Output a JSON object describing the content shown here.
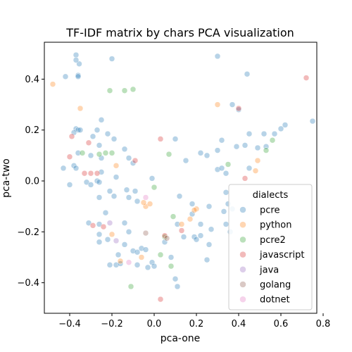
{
  "chart_data": {
    "type": "scatter",
    "title": "TF-IDF matrix by chars PCA visualization",
    "xlabel": "pca-one",
    "ylabel": "pca-two",
    "xlim": [
      -0.52,
      0.77
    ],
    "ylim": [
      -0.52,
      0.545
    ],
    "xticks": [
      -0.4,
      -0.2,
      0.0,
      0.2,
      0.4,
      0.6,
      0.8
    ],
    "xtick_labels": [
      "−0.4",
      "−0.2",
      "0.0",
      "0.2",
      "0.4",
      "0.6",
      "0.8"
    ],
    "yticks": [
      -0.4,
      -0.2,
      0.0,
      0.2,
      0.4
    ],
    "ytick_labels": [
      "−0.4",
      "−0.2",
      "0.0",
      "0.2",
      "0.4"
    ],
    "grid": false,
    "legend": {
      "title": "dialects",
      "placement": "lower-right"
    },
    "series": [
      {
        "name": "pcre",
        "color": "#1f77b4",
        "points": [
          [
            -0.37,
            0.495
          ],
          [
            -0.355,
            0.46
          ],
          [
            -0.37,
            0.475
          ],
          [
            -0.42,
            0.41
          ],
          [
            -0.36,
            0.415
          ],
          [
            -0.36,
            0.41
          ],
          [
            -0.2,
            0.48
          ],
          [
            0.3,
            0.49
          ],
          [
            0.44,
            0.42
          ],
          [
            -0.37,
            0.205
          ],
          [
            -0.36,
            0.2
          ],
          [
            -0.38,
            0.19
          ],
          [
            -0.35,
            0.2
          ],
          [
            -0.38,
            0.06
          ],
          [
            -0.37,
            0.05
          ],
          [
            -0.43,
            0.05
          ],
          [
            -0.4,
            -0.015
          ],
          [
            -0.36,
            0.11
          ],
          [
            -0.29,
            0.175
          ],
          [
            -0.25,
            0.24
          ],
          [
            -0.27,
            0.2
          ],
          [
            -0.22,
            0.185
          ],
          [
            -0.19,
            0.165
          ],
          [
            -0.26,
            0.14
          ],
          [
            -0.3,
            0.1
          ],
          [
            -0.25,
            0.09
          ],
          [
            -0.25,
            0.035
          ],
          [
            -0.27,
            0.0
          ],
          [
            -0.32,
            -0.005
          ],
          [
            -0.3,
            -0.015
          ],
          [
            -0.26,
            -0.005
          ],
          [
            -0.26,
            -0.065
          ],
          [
            -0.21,
            -0.04
          ],
          [
            -0.18,
            0.015
          ],
          [
            -0.19,
            -0.06
          ],
          [
            -0.23,
            -0.125
          ],
          [
            -0.26,
            -0.17
          ],
          [
            -0.31,
            -0.165
          ],
          [
            -0.26,
            -0.21
          ],
          [
            -0.26,
            -0.24
          ],
          [
            -0.22,
            -0.23
          ],
          [
            -0.17,
            -0.29
          ],
          [
            -0.21,
            -0.33
          ],
          [
            -0.18,
            -0.33
          ],
          [
            -0.16,
            -0.325
          ],
          [
            -0.14,
            0.125
          ],
          [
            -0.12,
            0.09
          ],
          [
            -0.1,
            0.07
          ],
          [
            -0.01,
            0.01
          ],
          [
            -0.13,
            -0.035
          ],
          [
            -0.12,
            -0.065
          ],
          [
            -0.09,
            -0.04
          ],
          [
            -0.08,
            -0.08
          ],
          [
            -0.14,
            -0.165
          ],
          [
            -0.12,
            -0.2
          ],
          [
            -0.14,
            -0.25
          ],
          [
            -0.1,
            -0.275
          ],
          [
            -0.08,
            -0.28
          ],
          [
            -0.06,
            -0.265
          ],
          [
            -0.04,
            -0.27
          ],
          [
            -0.01,
            -0.32
          ],
          [
            0.0,
            -0.335
          ],
          [
            -0.03,
            -0.34
          ],
          [
            0.1,
            -0.385
          ],
          [
            0.11,
            -0.415
          ],
          [
            0.05,
            -0.24
          ],
          [
            0.08,
            -0.3
          ],
          [
            -0.08,
            -0.33
          ],
          [
            0.12,
            -0.06
          ],
          [
            0.1,
            0.165
          ],
          [
            0.15,
            0.08
          ],
          [
            0.22,
            0.11
          ],
          [
            0.25,
            0.1
          ],
          [
            0.3,
            0.12
          ],
          [
            0.32,
            0.16
          ],
          [
            0.3,
            0.045
          ],
          [
            0.34,
            0.03
          ],
          [
            0.32,
            0.05
          ],
          [
            0.37,
            0.3
          ],
          [
            0.4,
            0.28
          ],
          [
            0.45,
            0.185
          ],
          [
            0.43,
            0.14
          ],
          [
            0.49,
            0.13
          ],
          [
            0.53,
            0.135
          ],
          [
            0.52,
            0.185
          ],
          [
            0.57,
            0.185
          ],
          [
            0.6,
            0.205
          ],
          [
            0.62,
            0.22
          ],
          [
            0.75,
            0.235
          ],
          [
            0.39,
            0.135
          ],
          [
            0.45,
            0.05
          ],
          [
            0.22,
            -0.215
          ],
          [
            0.19,
            -0.22
          ],
          [
            0.2,
            -0.23
          ],
          [
            0.18,
            -0.09
          ],
          [
            0.18,
            -0.13
          ],
          [
            0.27,
            -0.19
          ],
          [
            0.26,
            -0.25
          ],
          [
            0.25,
            -0.31
          ],
          [
            0.14,
            -0.22
          ],
          [
            0.11,
            -0.17
          ],
          [
            0.22,
            -0.17
          ],
          [
            0.34,
            -0.045
          ],
          [
            0.35,
            -0.09
          ],
          [
            0.37,
            -0.11
          ],
          [
            0.34,
            -0.17
          ],
          [
            0.36,
            -0.2
          ],
          [
            0.33,
            -0.12
          ],
          [
            0.26,
            -0.1
          ]
        ]
      },
      {
        "name": "python",
        "color": "#ff7f0e",
        "points": [
          [
            -0.48,
            0.38
          ],
          [
            -0.35,
            0.285
          ],
          [
            0.3,
            0.3
          ],
          [
            -0.18,
            0.06
          ],
          [
            -0.04,
            -0.1
          ],
          [
            -0.05,
            -0.085
          ],
          [
            0.2,
            -0.11
          ],
          [
            0.19,
            -0.115
          ],
          [
            0.17,
            -0.15
          ],
          [
            0.13,
            -0.17
          ],
          [
            -0.02,
            -0.09
          ],
          [
            -0.2,
            -0.21
          ],
          [
            -0.06,
            -0.3
          ],
          [
            -0.16,
            -0.315
          ],
          [
            0.49,
            0.08
          ],
          [
            0.48,
            0.04
          ]
        ]
      },
      {
        "name": "pcre2",
        "color": "#2ca02c",
        "points": [
          [
            -0.21,
            0.355
          ],
          [
            -0.14,
            0.355
          ],
          [
            -0.1,
            0.36
          ],
          [
            -0.23,
            0.11
          ],
          [
            -0.2,
            0.11
          ],
          [
            -0.26,
            0.105
          ],
          [
            -0.34,
            0.11
          ],
          [
            0.07,
            0.105
          ],
          [
            0.56,
            0.16
          ],
          [
            0.53,
            0.12
          ],
          [
            0.35,
            0.065
          ],
          [
            0.0,
            -0.025
          ],
          [
            0.09,
            -0.14
          ],
          [
            0.05,
            -0.22
          ],
          [
            0.03,
            -0.29
          ],
          [
            0.08,
            -0.335
          ],
          [
            -0.11,
            -0.415
          ]
        ]
      },
      {
        "name": "javascript",
        "color": "#d62728",
        "points": [
          [
            -0.39,
            0.175
          ],
          [
            -0.31,
            0.15
          ],
          [
            -0.4,
            0.095
          ],
          [
            -0.3,
            0.03
          ],
          [
            -0.33,
            0.03
          ],
          [
            -0.27,
            0.03
          ],
          [
            -0.09,
            0.08
          ],
          [
            0.03,
            0.165
          ],
          [
            0.4,
            0.285
          ],
          [
            0.72,
            0.405
          ],
          [
            0.43,
            0.01
          ],
          [
            0.13,
            -0.195
          ],
          [
            0.05,
            -0.215
          ],
          [
            -0.29,
            -0.175
          ],
          [
            -0.24,
            -0.18
          ],
          [
            0.03,
            -0.465
          ]
        ]
      },
      {
        "name": "java",
        "color": "#9467bd",
        "points": [
          [
            -0.21,
            -0.165
          ],
          [
            -0.18,
            -0.235
          ]
        ]
      },
      {
        "name": "golang",
        "color": "#8c564b",
        "points": [
          [
            -0.04,
            -0.205
          ],
          [
            0.06,
            -0.225
          ]
        ]
      },
      {
        "name": "dotnet",
        "color": "#e377c2",
        "points": [
          [
            -0.04,
            -0.065
          ],
          [
            -0.12,
            -0.32
          ]
        ]
      }
    ]
  }
}
